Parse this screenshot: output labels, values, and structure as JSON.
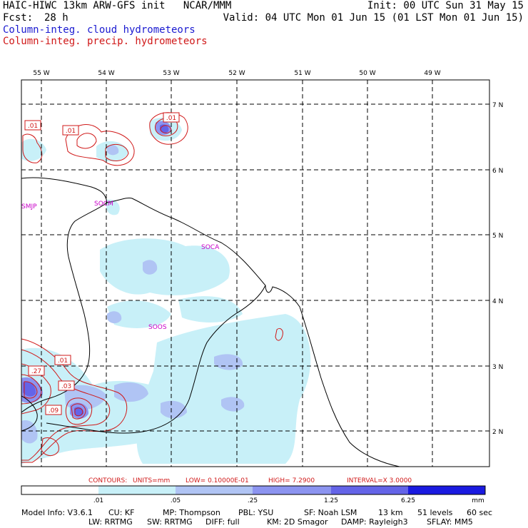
{
  "header": {
    "title": "HAIC-HIWC 13km ARW-GFS init   NCAR/MMM",
    "init": "Init: 00 UTC Sun 31 May 15",
    "fcst_label": "Fcst:",
    "fcst_value": "28 h",
    "valid": "Valid: 04 UTC Mon 01 Jun 15 (01 LST Mon 01 Jun 15)",
    "field1": "Column-integ. cloud hydrometeors",
    "field2": "Column-integ. precip. hydrometeors"
  },
  "map": {
    "lon_labels": [
      "55 W",
      "54 W",
      "53 W",
      "52 W",
      "51 W",
      "50 W",
      "49 W"
    ],
    "lat_labels": [
      "7 N",
      "6 N",
      "5 N",
      "4 N",
      "3 N",
      "2 N"
    ],
    "stations": [
      "SMJP",
      "SOCM",
      "SOCA",
      "SOOS"
    ],
    "contour_labels": [
      ".01",
      ".01",
      ".01",
      ".01",
      ".27",
      ".03",
      ".09"
    ],
    "colors": {
      "cloud_fill": "#c8f0f8",
      "precip_contour": "#d01818",
      "coast": "#000000"
    }
  },
  "contours_info": {
    "label": "CONTOURS:",
    "units": "UNITS=mm",
    "low": "LOW= 0.10000E-01",
    "high": "HIGH=  7.2900",
    "interval": "INTERVAL=X  3.0000"
  },
  "colorbar": {
    "ticks": [
      ".01",
      ".05",
      ".25",
      "1.25",
      "6.25"
    ],
    "unit": "mm",
    "colors": [
      "#ffffff",
      "#c8f0f8",
      "#b0c4f4",
      "#8c94f0",
      "#6464e8",
      "#3a3ae0",
      "#1414d8"
    ]
  },
  "model_info": {
    "line1": [
      "Model Info: V3.6.1",
      "CU: KF",
      "MP: Thompson",
      "PBL: YSU",
      "SF: Noah LSM",
      "13 km",
      "51 levels",
      "60 sec"
    ],
    "line2": [
      "LW: RRTMG",
      "SW: RRTMG",
      "DIFF: full",
      "KM: 2D Smagor",
      "DAMP: Rayleigh3",
      "SFLAY: MM5"
    ]
  }
}
